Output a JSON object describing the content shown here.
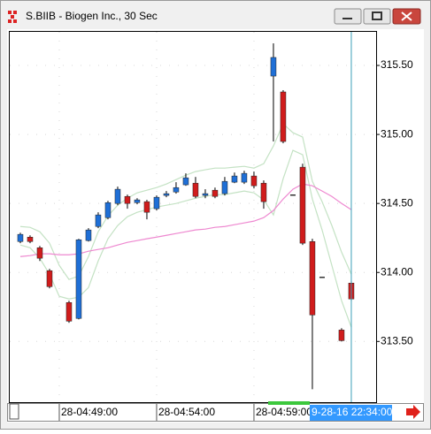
{
  "window": {
    "title": "S.BIIB - Biogen Inc., 30 Sec"
  },
  "chart_data": {
    "type": "candlestick",
    "xlim": [
      -1.18,
      36.55
    ],
    "ylim": [
      313.06,
      315.75
    ],
    "xticks": [
      {
        "value": 4,
        "label": "28-04:49:00"
      },
      {
        "value": 14,
        "label": "28-04:54:00"
      },
      {
        "value": 24,
        "label": "28-04:59:00"
      }
    ],
    "yticks": [
      {
        "value": 315.5,
        "label": "315.50"
      },
      {
        "value": 315,
        "label": "315.00"
      },
      {
        "value": 314.5,
        "label": "314.50"
      },
      {
        "value": 314,
        "label": "314.00"
      },
      {
        "value": 313.5,
        "label": "313.50"
      }
    ],
    "grid": true,
    "cursor": {
      "value": 34,
      "label": "9-28-16 22:34:00"
    },
    "series": [
      {
        "type": "line",
        "color": "#c4e2c4",
        "values": [
          314.333,
          314.327,
          314.295,
          314.212,
          314.051,
          313.949,
          313.974,
          314.115,
          314.295,
          314.41,
          314.487,
          314.538,
          314.577,
          314.596,
          314.615,
          314.641,
          314.673,
          314.705,
          314.731,
          314.744,
          314.756,
          314.756,
          314.763,
          314.769,
          314.756,
          314.788,
          314.917,
          315.077,
          315.013,
          314.981,
          314.66,
          314.513,
          314.34,
          314.147,
          313.987
        ]
      },
      {
        "type": "line",
        "color": "#c4e2c4",
        "values": [
          314.199,
          314.179,
          314.103,
          313.987,
          313.827,
          313.808,
          313.821,
          313.891,
          314.083,
          314.244,
          314.34,
          314.404,
          314.436,
          314.455,
          314.474,
          314.487,
          314.5,
          314.519,
          314.538,
          314.551,
          314.564,
          314.564,
          314.577,
          314.59,
          314.577,
          314.526,
          314.417,
          314.679,
          314.885,
          314.853,
          314.532,
          314.308,
          314.051,
          313.795,
          313.603
        ]
      },
      {
        "type": "line",
        "color": "#ee88d0",
        "values": [
          314.115,
          314.122,
          314.135,
          314.135,
          314.128,
          314.128,
          314.135,
          314.154,
          314.167,
          314.179,
          314.199,
          314.218,
          314.231,
          314.244,
          314.256,
          314.269,
          314.282,
          314.295,
          314.308,
          314.314,
          314.327,
          314.333,
          314.346,
          314.359,
          314.372,
          314.397,
          314.449,
          314.532,
          314.603,
          314.641,
          314.628,
          314.59,
          314.551,
          314.5,
          314.455
        ]
      },
      {
        "type": "candlestick",
        "up_color": "#1f6fd6",
        "down_color": "#d01c1c",
        "open": [
          314.224,
          314.256,
          314.179,
          314.013,
          null,
          313.782,
          313.667,
          314.231,
          314.333,
          314.397,
          314.5,
          314.551,
          314.506,
          314.513,
          314.462,
          314.558,
          314.583,
          314.635,
          314.647,
          314.558,
          314.596,
          314.571,
          314.654,
          314.654,
          314.699,
          314.647,
          315.423,
          315.308,
          314.564,
          314.763,
          314.224,
          313.968,
          null,
          313.583,
          313.923
        ],
        "high": [
          314.288,
          314.269,
          314.192,
          314.026,
          null,
          313.795,
          314.244,
          314.321,
          314.436,
          314.519,
          314.622,
          314.564,
          314.538,
          314.526,
          314.558,
          314.59,
          314.654,
          314.718,
          314.692,
          314.603,
          314.615,
          314.692,
          314.724,
          314.737,
          314.731,
          314.667,
          315.66,
          315.321,
          314.564,
          314.788,
          314.244,
          313.968,
          null,
          313.596,
          313.936
        ],
        "low": [
          314.212,
          314.212,
          314.083,
          313.885,
          null,
          313.635,
          313.66,
          314.224,
          314.321,
          314.385,
          314.487,
          314.462,
          314.494,
          314.385,
          314.449,
          314.545,
          314.571,
          314.628,
          314.538,
          314.538,
          314.538,
          314.558,
          314.647,
          314.641,
          314.609,
          314.462,
          314.949,
          314.936,
          314.564,
          314.199,
          313.154,
          313.968,
          null,
          313.5,
          313.795
        ],
        "close": [
          314.276,
          314.224,
          314.103,
          313.897,
          null,
          313.647,
          314.237,
          314.308,
          314.417,
          314.506,
          314.603,
          314.5,
          314.526,
          314.436,
          314.545,
          314.571,
          314.615,
          314.686,
          314.551,
          314.571,
          314.551,
          314.66,
          314.699,
          314.718,
          314.628,
          314.513,
          315.558,
          314.949,
          314.564,
          314.212,
          313.692,
          313.968,
          null,
          313.506,
          313.808
        ]
      }
    ]
  }
}
